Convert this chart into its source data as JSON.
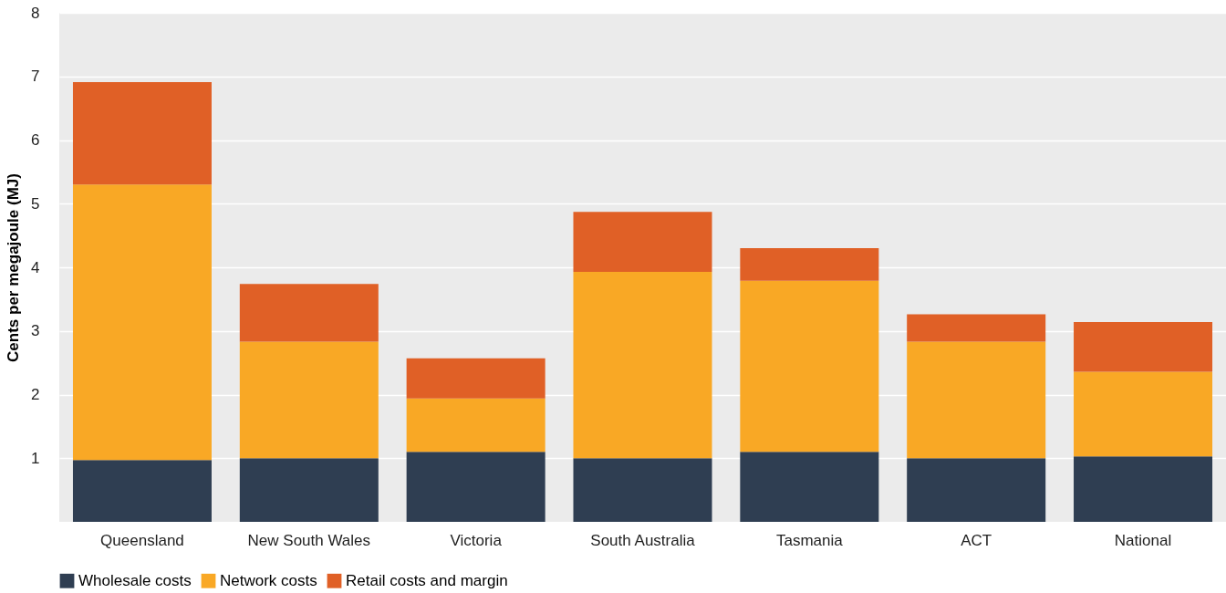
{
  "chart_data": {
    "type": "bar",
    "stacked": true,
    "ylabel": "Cents per megajoule (MJ)",
    "categories": [
      "Queensland",
      "New South Wales",
      "Victoria",
      "South Australia",
      "Tasmania",
      "ACT",
      "National"
    ],
    "series": [
      {
        "name": "Wholesale costs",
        "color": "#2f3e52",
        "values": [
          0.97,
          1.0,
          1.1,
          1.0,
          1.1,
          1.0,
          1.03
        ]
      },
      {
        "name": "Network costs",
        "color": "#f9a825",
        "values": [
          4.33,
          1.83,
          0.84,
          2.93,
          2.69,
          1.83,
          1.33
        ]
      },
      {
        "name": "Retail costs and margin",
        "color": "#e06026",
        "values": [
          1.61,
          0.91,
          0.63,
          0.94,
          0.51,
          0.43,
          0.78
        ]
      }
    ],
    "ylim": [
      0,
      8
    ],
    "yticks": [
      1,
      2,
      3,
      4,
      5,
      6,
      7,
      8
    ],
    "grid": "y",
    "legend": "bottom left"
  }
}
